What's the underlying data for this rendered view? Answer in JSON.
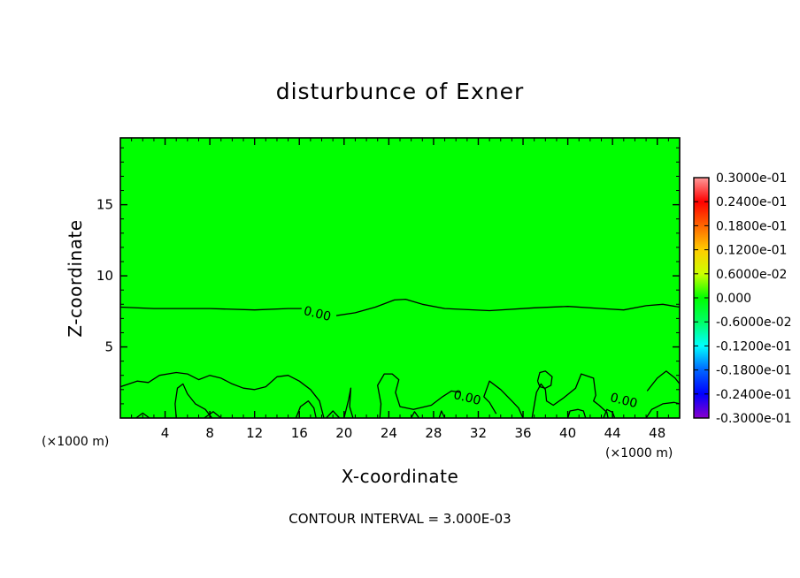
{
  "chart_data": {
    "type": "contour",
    "title": "disturbunce of Exner",
    "xlabel": "X-coordinate",
    "ylabel": "Z-coordinate",
    "x_unit": "(×1000 m)",
    "y_unit": "(×1000 m)",
    "xlim": [
      0,
      50
    ],
    "ylim": [
      0,
      19.7
    ],
    "x_ticks": [
      4,
      8,
      12,
      16,
      20,
      24,
      28,
      32,
      36,
      40,
      44,
      48
    ],
    "y_ticks": [
      5,
      10,
      15
    ],
    "background_color": "#00ff00",
    "contour_interval_text": "CONTOUR INTERVAL = 3.000E-03",
    "contour_labels": [
      {
        "text": "0.00",
        "x": 17.6,
        "z": 7.3
      },
      {
        "text": "0.00",
        "x": 31.0,
        "z": 1.4
      },
      {
        "text": "0.00",
        "x": 45.0,
        "z": 1.2
      }
    ],
    "contours": [
      [
        [
          0,
          7.8
        ],
        [
          3,
          7.7
        ],
        [
          8,
          7.7
        ],
        [
          12,
          7.6
        ],
        [
          15,
          7.7
        ],
        [
          16.2,
          7.7
        ]
      ],
      [
        [
          19.3,
          7.2
        ],
        [
          21,
          7.4
        ],
        [
          22.8,
          7.8
        ],
        [
          24.5,
          8.3
        ],
        [
          25.5,
          8.35
        ],
        [
          27,
          8.0
        ],
        [
          29,
          7.7
        ],
        [
          33,
          7.55
        ],
        [
          37,
          7.75
        ],
        [
          40,
          7.85
        ],
        [
          43,
          7.7
        ],
        [
          45,
          7.6
        ],
        [
          47,
          7.9
        ],
        [
          48.5,
          8.0
        ],
        [
          50,
          7.8
        ]
      ],
      [
        [
          0,
          2.2
        ],
        [
          1.5,
          2.6
        ],
        [
          2.5,
          2.5
        ],
        [
          3.5,
          3.0
        ],
        [
          5,
          3.2
        ],
        [
          6,
          3.1
        ],
        [
          7,
          2.7
        ],
        [
          8,
          3.0
        ],
        [
          9,
          2.8
        ],
        [
          10,
          2.4
        ],
        [
          11,
          2.1
        ],
        [
          12,
          2.0
        ],
        [
          13,
          2.2
        ],
        [
          14,
          2.9
        ],
        [
          15,
          3.0
        ],
        [
          16,
          2.6
        ],
        [
          17,
          2.0
        ],
        [
          17.8,
          1.2
        ],
        [
          18.2,
          0
        ]
      ],
      [
        [
          5,
          0
        ],
        [
          4.9,
          1.0
        ],
        [
          5.1,
          2.1
        ],
        [
          5.6,
          2.4
        ],
        [
          6.0,
          1.7
        ],
        [
          6.7,
          1.0
        ],
        [
          7.6,
          0.6
        ],
        [
          8.2,
          0
        ]
      ],
      [
        [
          1.4,
          0
        ],
        [
          2.0,
          0.35
        ],
        [
          2.6,
          0
        ]
      ],
      [
        [
          7.5,
          0
        ],
        [
          8.3,
          0.45
        ],
        [
          9.0,
          0
        ]
      ],
      [
        [
          15.7,
          0
        ],
        [
          16.1,
          0.8
        ],
        [
          16.8,
          1.2
        ],
        [
          17.3,
          0.7
        ],
        [
          17.5,
          0
        ]
      ],
      [
        [
          18.4,
          0
        ],
        [
          19.0,
          0.5
        ],
        [
          19.6,
          0
        ]
      ],
      [
        [
          20.0,
          0
        ],
        [
          20.4,
          1.3
        ],
        [
          20.6,
          2.1
        ],
        [
          20.5,
          0.8
        ],
        [
          20.8,
          0
        ]
      ],
      [
        [
          23.2,
          0
        ],
        [
          23.3,
          1.0
        ],
        [
          23.0,
          2.3
        ],
        [
          23.6,
          3.1
        ],
        [
          24.3,
          3.1
        ],
        [
          24.9,
          2.7
        ],
        [
          24.6,
          1.8
        ],
        [
          25.0,
          0.8
        ],
        [
          26.2,
          0.6
        ],
        [
          27.8,
          0.9
        ],
        [
          28.8,
          1.5
        ],
        [
          29.6,
          1.9
        ],
        [
          30.4,
          1.8
        ]
      ],
      [
        [
          33.6,
          0.3
        ],
        [
          33.0,
          1.1
        ],
        [
          32.5,
          1.5
        ],
        [
          33.0,
          2.6
        ],
        [
          34.0,
          2.0
        ],
        [
          35.0,
          1.2
        ],
        [
          35.6,
          0.7
        ],
        [
          36.0,
          0
        ]
      ],
      [
        [
          26.0,
          0
        ],
        [
          26.3,
          0.45
        ],
        [
          26.7,
          0
        ]
      ],
      [
        [
          28.5,
          0
        ],
        [
          28.7,
          0.5
        ],
        [
          29.0,
          0
        ]
      ],
      [
        [
          36.8,
          0
        ],
        [
          37.2,
          1.8
        ],
        [
          37.6,
          2.4
        ],
        [
          38.0,
          2.0
        ],
        [
          38.1,
          1.2
        ],
        [
          38.7,
          0.9
        ],
        [
          39.6,
          1.4
        ],
        [
          40.7,
          2.1
        ],
        [
          41.2,
          3.1
        ],
        [
          42.3,
          2.8
        ],
        [
          42.5,
          1.6
        ],
        [
          42.3,
          1.2
        ],
        [
          42.8,
          0.9
        ],
        [
          43.5,
          0.4
        ],
        [
          43.6,
          0
        ]
      ],
      [
        [
          37.3,
          2.6
        ],
        [
          37.5,
          3.2
        ],
        [
          38.0,
          3.3
        ],
        [
          38.6,
          2.9
        ],
        [
          38.5,
          2.3
        ],
        [
          38.0,
          2.1
        ],
        [
          37.5,
          2.2
        ],
        [
          37.3,
          2.6
        ]
      ],
      [
        [
          40.0,
          0
        ],
        [
          40.2,
          0.5
        ],
        [
          40.9,
          0.6
        ],
        [
          41.4,
          0.5
        ],
        [
          41.6,
          0
        ]
      ],
      [
        [
          43.2,
          0
        ],
        [
          43.5,
          0.6
        ],
        [
          44.0,
          0.4
        ],
        [
          44.2,
          0
        ]
      ],
      [
        [
          47.1,
          1.9
        ],
        [
          48.0,
          2.8
        ],
        [
          48.8,
          3.3
        ],
        [
          49.6,
          2.8
        ],
        [
          50.0,
          2.4
        ]
      ],
      [
        [
          47.0,
          0
        ],
        [
          47.5,
          0.6
        ],
        [
          48.5,
          1.0
        ],
        [
          49.5,
          1.1
        ],
        [
          50.0,
          1.0
        ]
      ]
    ],
    "colorbar": {
      "labels": [
        "0.3000e-01",
        "0.2400e-01",
        "0.1800e-01",
        "0.1200e-01",
        "0.6000e-02",
        "0.000",
        "-0.6000e-02",
        "-0.1200e-01",
        "-0.1800e-01",
        "-0.2400e-01",
        "-0.3000e-01"
      ],
      "colors": [
        "#ff9999",
        "#ff0000",
        "#ff6600",
        "#ffcc00",
        "#ccff00",
        "#00ff00",
        "#00ff66",
        "#00ffff",
        "#0066ff",
        "#0000ff",
        "#8800cc"
      ]
    }
  }
}
